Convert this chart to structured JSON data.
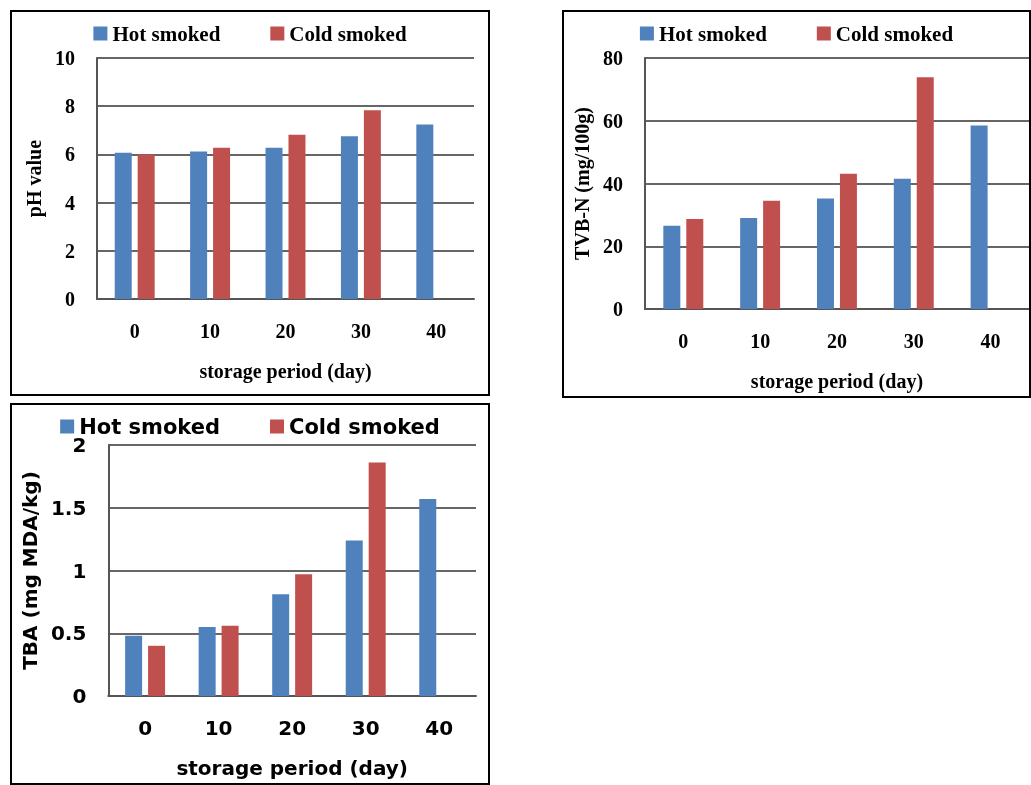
{
  "chart_data": [
    {
      "type": "bar",
      "categories": [
        "0",
        "10",
        "20",
        "30",
        "40"
      ],
      "xlabel": "storage period (day)",
      "ylabel": "pH value",
      "ylim": [
        0,
        10
      ],
      "yticks": [
        0,
        2,
        4,
        6,
        8,
        10
      ],
      "grid": "y",
      "legend": "top",
      "series": [
        {
          "name": "Hot smoked",
          "color": "#4f81bd",
          "values": [
            6.07,
            6.12,
            6.28,
            6.75,
            7.24
          ]
        },
        {
          "name": "Cold smoked",
          "color": "#c0504d",
          "values": [
            6.0,
            6.28,
            6.82,
            7.83,
            null
          ]
        }
      ]
    },
    {
      "type": "bar",
      "categories": [
        "0",
        "10",
        "20",
        "30",
        "40"
      ],
      "xlabel": "storage period (day)",
      "ylabel": "TVB-N (mg/100g)",
      "ylim": [
        0,
        80
      ],
      "yticks": [
        0,
        20,
        40,
        60,
        80
      ],
      "grid": "y",
      "legend": "top",
      "series": [
        {
          "name": "Hot smoked",
          "color": "#4f81bd",
          "values": [
            26.5,
            29,
            35.2,
            41.5,
            58.5
          ]
        },
        {
          "name": "Cold smoked",
          "color": "#c0504d",
          "values": [
            28.7,
            34.5,
            43.1,
            73.9,
            null
          ]
        }
      ]
    },
    {
      "type": "bar",
      "categories": [
        "0",
        "10",
        "20",
        "30",
        "40"
      ],
      "xlabel": "storage period (day)",
      "ylabel": "TBA (mg MDA/kg)",
      "ylim": [
        0,
        2
      ],
      "yticks": [
        0,
        0.5,
        1,
        1.5,
        2
      ],
      "grid": "y",
      "legend": "top",
      "series": [
        {
          "name": "Hot smoked",
          "color": "#4f81bd",
          "values": [
            0.48,
            0.55,
            0.81,
            1.24,
            1.57
          ]
        },
        {
          "name": "Cold smoked",
          "color": "#c0504d",
          "values": [
            0.4,
            0.56,
            0.97,
            1.86,
            null
          ]
        }
      ]
    }
  ]
}
